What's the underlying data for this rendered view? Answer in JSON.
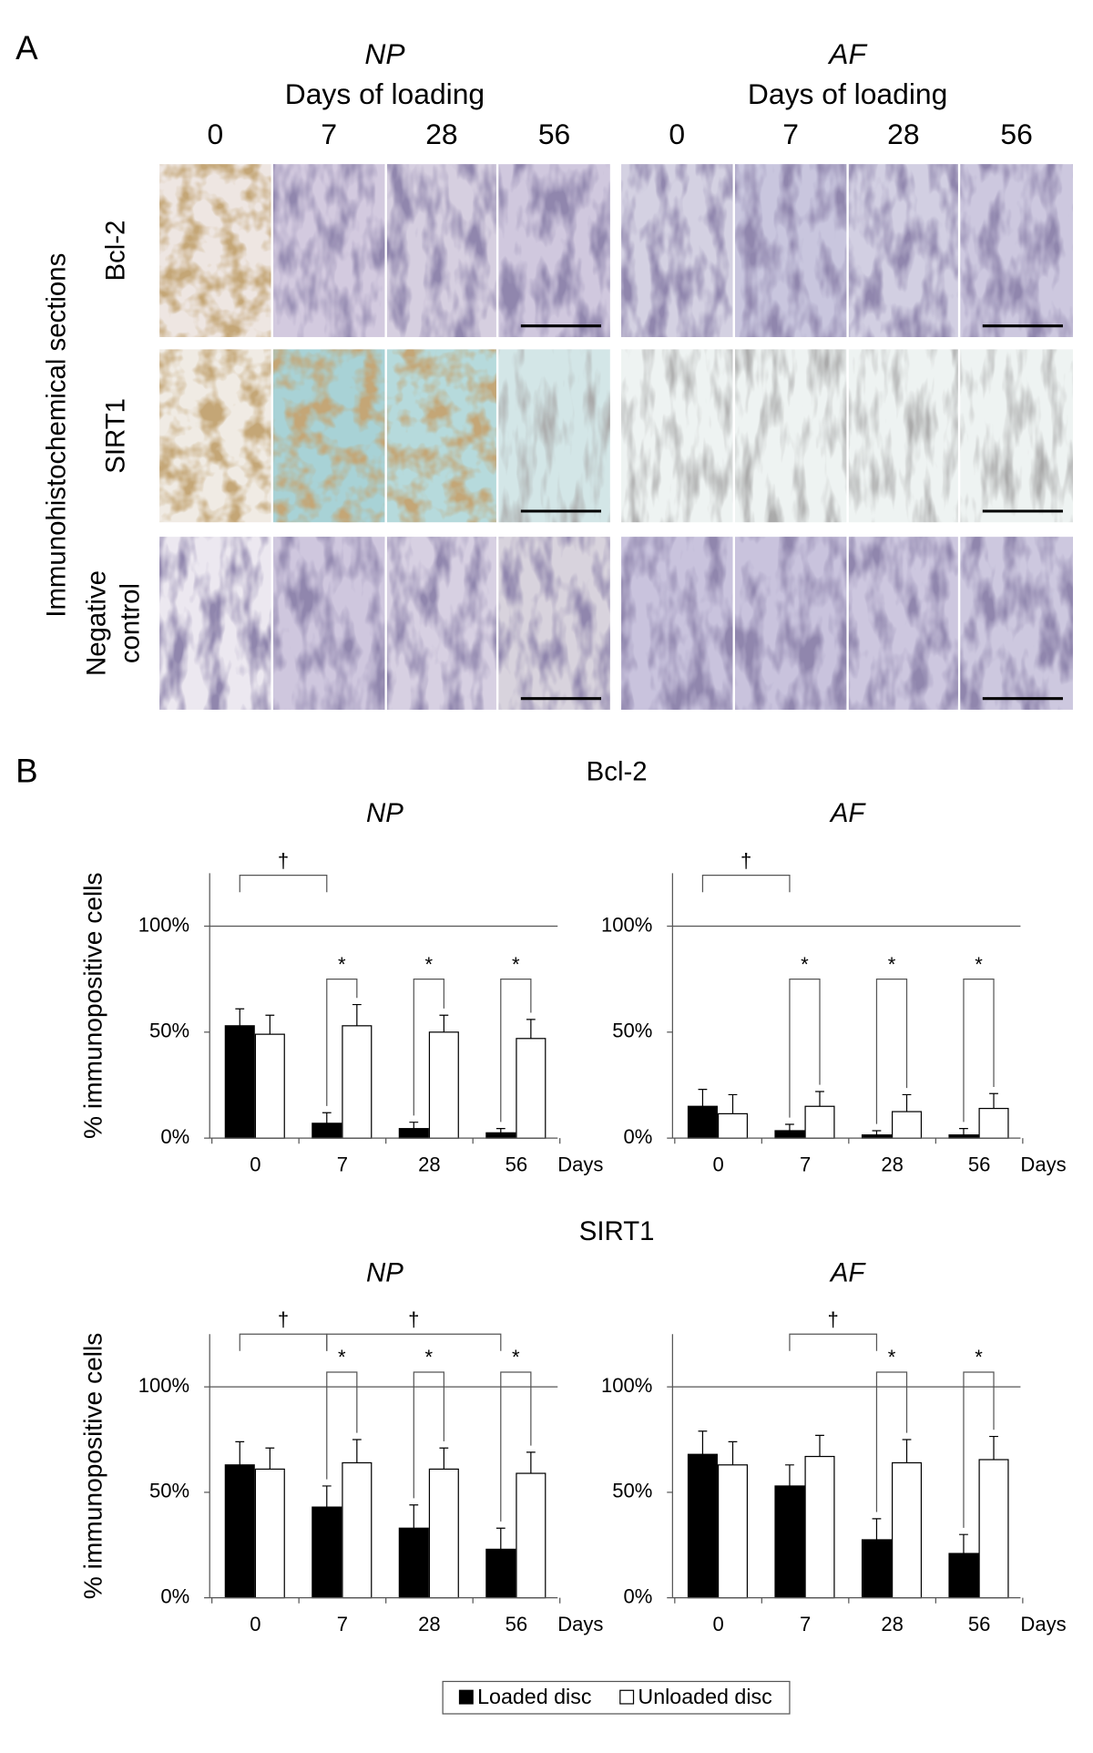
{
  "panel_a": {
    "label": "A",
    "side_label": "Immunohistochemical sections",
    "groups": [
      {
        "title": "NP",
        "subtitle": "Days of loading",
        "days": [
          "0",
          "7",
          "28",
          "56"
        ]
      },
      {
        "title": "AF",
        "subtitle": "Days of loading",
        "days": [
          "0",
          "7",
          "28",
          "56"
        ]
      }
    ],
    "rows": [
      [
        "Bcl-2"
      ],
      [
        "SIRT1"
      ],
      [
        "Negative",
        "control"
      ]
    ]
  },
  "panel_b_label": "B",
  "sections": [
    "Bcl-2",
    "SIRT1"
  ],
  "chart_data": [
    {
      "type": "bar",
      "title": "NP",
      "ylabel": "% immunopositive cells",
      "xlabel": "Days",
      "categories": [
        "0",
        "7",
        "28",
        "56"
      ],
      "series": [
        {
          "name": "Loaded disc",
          "color": "#000000",
          "values": [
            53,
            7,
            4.5,
            2.5
          ],
          "errors": [
            8,
            5,
            3,
            2
          ]
        },
        {
          "name": "Unloaded disc",
          "color": "#ffffff",
          "values": [
            49,
            53,
            50,
            47
          ],
          "errors": [
            9,
            10,
            8,
            9
          ]
        }
      ],
      "ylim": [
        0,
        125
      ],
      "yticks": [
        {
          "value": 0,
          "label": "0%"
        },
        {
          "value": 50,
          "label": "50%"
        },
        {
          "value": 100,
          "label": "100%"
        }
      ],
      "reference_line": 100,
      "annotations": [
        "†",
        "*",
        "*",
        "*"
      ]
    },
    {
      "type": "bar",
      "title": "AF",
      "xlabel": "Days",
      "categories": [
        "0",
        "7",
        "28",
        "56"
      ],
      "series": [
        {
          "name": "Loaded disc",
          "color": "#000000",
          "values": [
            15,
            3.5,
            1.5,
            1.5
          ],
          "errors": [
            8,
            3,
            2,
            3
          ]
        },
        {
          "name": "Unloaded disc",
          "color": "#ffffff",
          "values": [
            11.5,
            15,
            12.5,
            14
          ],
          "errors": [
            9,
            7,
            8,
            7
          ]
        }
      ],
      "ylim": [
        0,
        125
      ],
      "yticks": [
        {
          "value": 0,
          "label": "0%"
        },
        {
          "value": 50,
          "label": "50%"
        },
        {
          "value": 100,
          "label": "100%"
        }
      ],
      "reference_line": 100,
      "annotations": [
        "†",
        "*",
        "*",
        "*"
      ]
    },
    {
      "type": "bar",
      "title": "NP",
      "ylabel": "% immunopositive cells",
      "xlabel": "Days",
      "categories": [
        "0",
        "7",
        "28",
        "56"
      ],
      "series": [
        {
          "name": "Loaded disc",
          "color": "#000000",
          "values": [
            63,
            43,
            33,
            23
          ],
          "errors": [
            11,
            10,
            11,
            10
          ]
        },
        {
          "name": "Unloaded disc",
          "color": "#ffffff",
          "values": [
            61,
            64,
            61,
            59
          ],
          "errors": [
            10,
            11,
            10,
            10
          ]
        }
      ],
      "ylim": [
        0,
        125
      ],
      "yticks": [
        {
          "value": 0,
          "label": "0%"
        },
        {
          "value": 50,
          "label": "50%"
        },
        {
          "value": 100,
          "label": "100%"
        }
      ],
      "reference_line": 100,
      "annotations": [
        "†",
        "†",
        "*",
        "*",
        "*"
      ]
    },
    {
      "type": "bar",
      "title": "AF",
      "xlabel": "Days",
      "categories": [
        "0",
        "7",
        "28",
        "56"
      ],
      "series": [
        {
          "name": "Loaded disc",
          "color": "#000000",
          "values": [
            68,
            53,
            27.5,
            21
          ],
          "errors": [
            11,
            10,
            10,
            9
          ]
        },
        {
          "name": "Unloaded disc",
          "color": "#ffffff",
          "values": [
            63,
            67,
            64,
            65.5
          ],
          "errors": [
            11,
            10,
            11,
            11
          ]
        }
      ],
      "ylim": [
        0,
        125
      ],
      "yticks": [
        {
          "value": 0,
          "label": "0%"
        },
        {
          "value": 50,
          "label": "50%"
        },
        {
          "value": 100,
          "label": "100%"
        }
      ],
      "reference_line": 100,
      "annotations": [
        "†",
        "*",
        "*"
      ]
    }
  ]
}
